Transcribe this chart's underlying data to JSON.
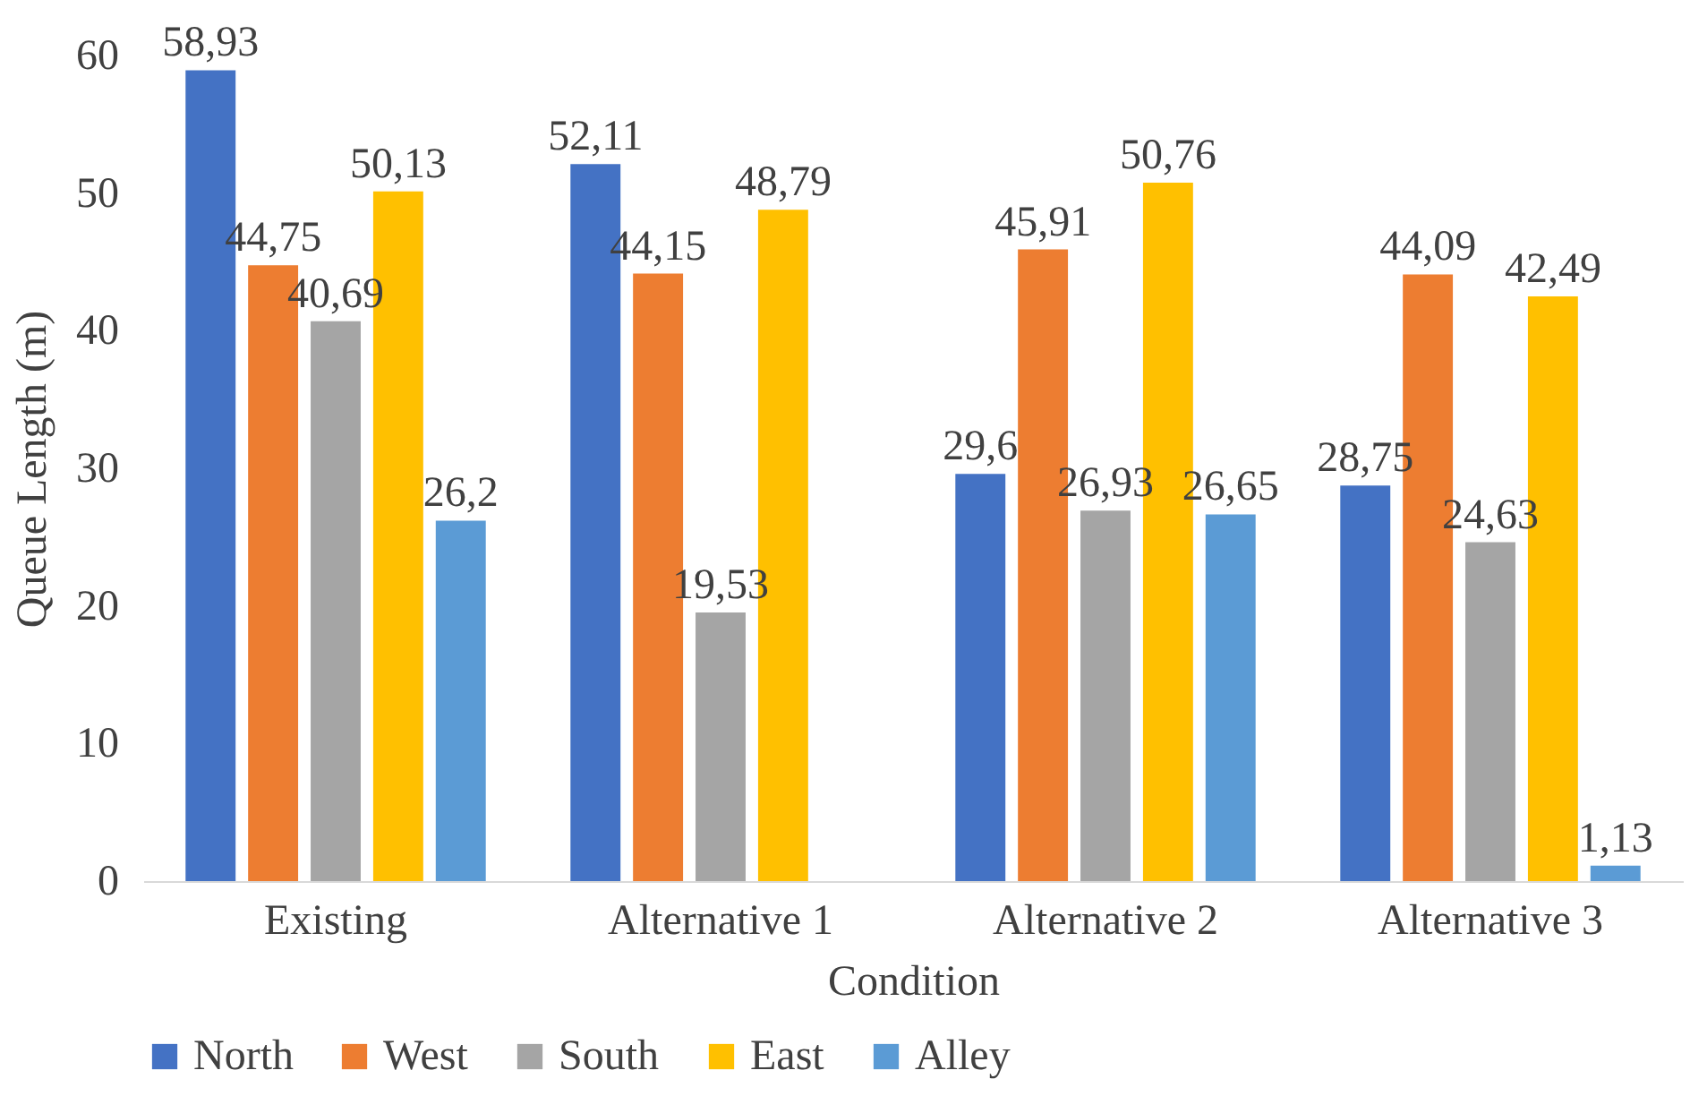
{
  "chart_data": {
    "type": "bar",
    "xlabel": "Condition",
    "ylabel": "Queue Length (m)",
    "categories": [
      "Existing",
      "Alternative 1",
      "Alternative 2",
      "Alternative 3"
    ],
    "series": [
      {
        "name": "North",
        "color": "#4472c4",
        "values": [
          58.93,
          52.11,
          29.6,
          28.75
        ],
        "value_labels": [
          "58,93",
          "52,11",
          "29,6",
          "28,75"
        ]
      },
      {
        "name": "West",
        "color": "#ed7d31",
        "values": [
          44.75,
          44.15,
          45.91,
          44.09
        ],
        "value_labels": [
          "44,75",
          "44,15",
          "45,91",
          "44,09"
        ]
      },
      {
        "name": "South",
        "color": "#a5a5a5",
        "values": [
          40.69,
          19.53,
          26.93,
          24.63
        ],
        "value_labels": [
          "40,69",
          "19,53",
          "26,93",
          "24,63"
        ]
      },
      {
        "name": "East",
        "color": "#ffc000",
        "values": [
          50.13,
          48.79,
          50.76,
          42.49
        ],
        "value_labels": [
          "50,13",
          "48,79",
          "50,76",
          "42,49"
        ]
      },
      {
        "name": "Alley",
        "color": "#5b9bd5",
        "values": [
          26.2,
          null,
          26.65,
          1.13
        ],
        "value_labels": [
          "26,2",
          null,
          "26,65",
          "1,13"
        ]
      }
    ],
    "ylim": [
      0,
      60
    ],
    "yticks": [
      0,
      10,
      20,
      30,
      40,
      50,
      60
    ],
    "legend": "bottom"
  }
}
